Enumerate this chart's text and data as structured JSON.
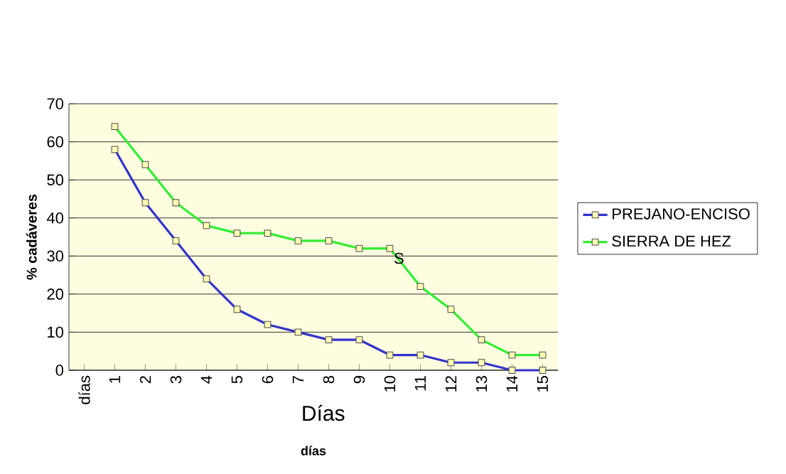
{
  "chart_data": {
    "type": "line",
    "xlabel": "días",
    "ylabel": "% cadáveres",
    "categories": [
      "días",
      "1",
      "2",
      "3",
      "4",
      "5",
      "6",
      "7",
      "8",
      "9",
      "10",
      "11",
      "12",
      "13",
      "14",
      "15"
    ],
    "series": [
      {
        "name": "PREJANO-ENCISO",
        "color": "#3333cc",
        "values": [
          null,
          58,
          44,
          34,
          24,
          16,
          12,
          10,
          8,
          8,
          4,
          4,
          2,
          2,
          0,
          0
        ]
      },
      {
        "name": "SIERRA DE HEZ",
        "color": "#33ee33",
        "values": [
          null,
          64,
          54,
          44,
          38,
          36,
          36,
          34,
          34,
          32,
          32,
          22,
          16,
          8,
          4,
          4
        ]
      }
    ],
    "ylim": [
      0,
      70
    ],
    "yticks": [
      0,
      10,
      20,
      30,
      40,
      50,
      60,
      70
    ],
    "grid": "y",
    "legend": "right",
    "marker": "square",
    "line_style": "solid",
    "annotations": [
      "Días",
      "S"
    ]
  }
}
